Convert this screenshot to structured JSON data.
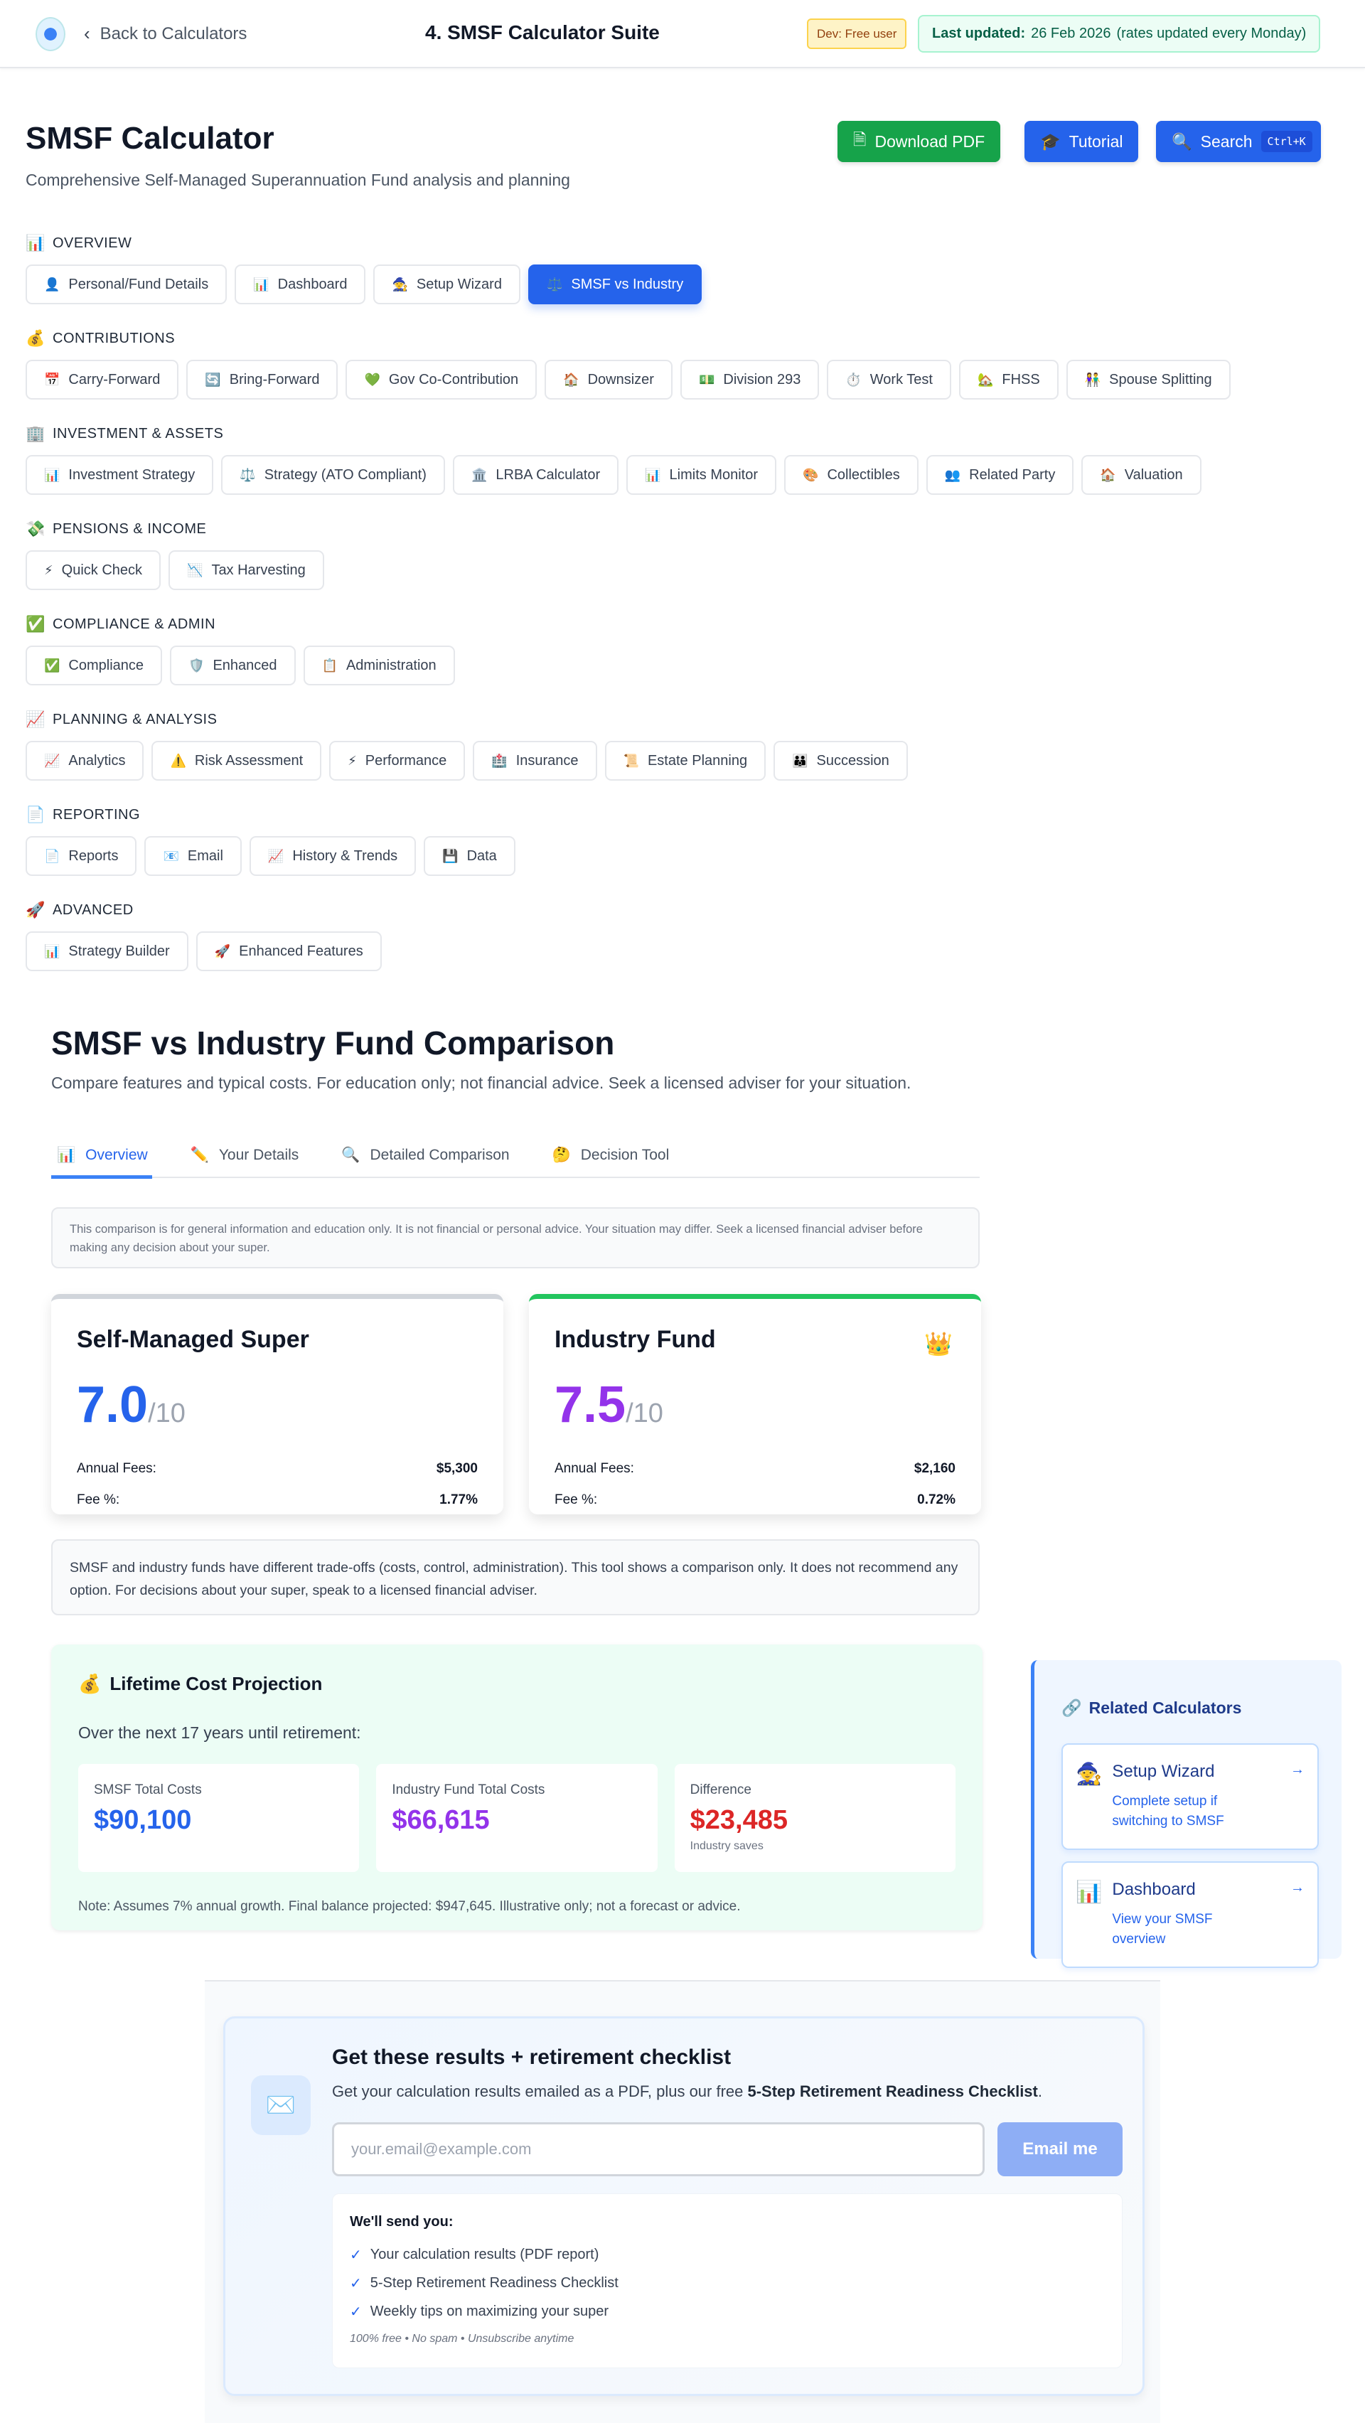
{
  "header": {
    "back_label": "Back to Calculators",
    "title": "4. SMSF Calculator Suite",
    "dev_badge": "Dev: Free user",
    "last_updated_label": "Last updated:",
    "last_updated_date": "26 Feb 2026",
    "last_updated_note": "(rates updated every Monday)"
  },
  "page": {
    "title": "SMSF Calculator",
    "subtitle": "Comprehensive Self-Managed Superannuation Fund analysis and planning"
  },
  "actions": {
    "download": "Download PDF",
    "tutorial": "Tutorial",
    "search": "Search",
    "search_shortcut": "Ctrl+K"
  },
  "colors": {
    "primary": "#2563eb",
    "success": "#16a34a",
    "purple": "#9333ea",
    "danger": "#dc2626"
  },
  "nav": [
    {
      "title": "OVERVIEW",
      "icon": "📊",
      "items": [
        {
          "icon": "👤",
          "label": "Personal/Fund Details"
        },
        {
          "icon": "📊",
          "label": "Dashboard"
        },
        {
          "icon": "🧙",
          "label": "Setup Wizard"
        },
        {
          "icon": "⚖️",
          "label": "SMSF vs Industry",
          "active": true
        }
      ]
    },
    {
      "title": "CONTRIBUTIONS",
      "icon": "💰",
      "items": [
        {
          "icon": "📅",
          "label": "Carry-Forward"
        },
        {
          "icon": "🔄",
          "label": "Bring-Forward"
        },
        {
          "icon": "💚",
          "label": "Gov Co-Contribution"
        },
        {
          "icon": "🏠",
          "label": "Downsizer"
        },
        {
          "icon": "💵",
          "label": "Division 293"
        },
        {
          "icon": "⏱️",
          "label": "Work Test"
        },
        {
          "icon": "🏡",
          "label": "FHSS"
        },
        {
          "icon": "👫",
          "label": "Spouse Splitting"
        }
      ]
    },
    {
      "title": "INVESTMENT & ASSETS",
      "icon": "🏢",
      "items": [
        {
          "icon": "📊",
          "label": "Investment Strategy"
        },
        {
          "icon": "⚖️",
          "label": "Strategy (ATO Compliant)"
        },
        {
          "icon": "🏛️",
          "label": "LRBA Calculator"
        },
        {
          "icon": "📊",
          "label": "Limits Monitor"
        },
        {
          "icon": "🎨",
          "label": "Collectibles"
        },
        {
          "icon": "👥",
          "label": "Related Party"
        },
        {
          "icon": "🏠",
          "label": "Valuation"
        }
      ]
    },
    {
      "title": "PENSIONS & INCOME",
      "icon": "💸",
      "items": [
        {
          "icon": "⚡",
          "label": "Quick Check"
        },
        {
          "icon": "📉",
          "label": "Tax Harvesting"
        }
      ]
    },
    {
      "title": "COMPLIANCE & ADMIN",
      "icon": "✅",
      "items": [
        {
          "icon": "✅",
          "label": "Compliance"
        },
        {
          "icon": "🛡️",
          "label": "Enhanced"
        },
        {
          "icon": "📋",
          "label": "Administration"
        }
      ]
    },
    {
      "title": "PLANNING & ANALYSIS",
      "icon": "📈",
      "items": [
        {
          "icon": "📈",
          "label": "Analytics"
        },
        {
          "icon": "⚠️",
          "label": "Risk Assessment"
        },
        {
          "icon": "⚡",
          "label": "Performance"
        },
        {
          "icon": "🏥",
          "label": "Insurance"
        },
        {
          "icon": "📜",
          "label": "Estate Planning"
        },
        {
          "icon": "👪",
          "label": "Succession"
        }
      ]
    },
    {
      "title": "REPORTING",
      "icon": "📄",
      "items": [
        {
          "icon": "📄",
          "label": "Reports"
        },
        {
          "icon": "📧",
          "label": "Email"
        },
        {
          "icon": "📈",
          "label": "History & Trends"
        },
        {
          "icon": "💾",
          "label": "Data"
        }
      ]
    },
    {
      "title": "ADVANCED",
      "icon": "🚀",
      "items": [
        {
          "icon": "📊",
          "label": "Strategy Builder"
        },
        {
          "icon": "🚀",
          "label": "Enhanced Features"
        }
      ]
    }
  ],
  "comparison": {
    "title": "SMSF vs Industry Fund Comparison",
    "subtitle": "Compare features and typical costs. For education only; not financial advice. Seek a licensed adviser for your situation.",
    "tabs": [
      {
        "icon": "📊",
        "label": "Overview",
        "active": true
      },
      {
        "icon": "✏️",
        "label": "Your Details"
      },
      {
        "icon": "🔍",
        "label": "Detailed Comparison"
      },
      {
        "icon": "🤔",
        "label": "Decision Tool"
      }
    ],
    "disclaimer": "This comparison is for general information and education only. It is not financial or personal advice. Your situation may differ. Seek a licensed financial adviser before making any decision about your super.",
    "smsf": {
      "name": "Self-Managed Super",
      "score": "7.0",
      "score_of": "/10",
      "fees_label": "Annual Fees:",
      "fees": "$5,300",
      "pct_label": "Fee %:",
      "pct": "1.77%",
      "accent": "#d1d5db"
    },
    "industry": {
      "name": "Industry Fund",
      "score": "7.5",
      "score_of": "/10",
      "fees_label": "Annual Fees:",
      "fees": "$2,160",
      "pct_label": "Fee %:",
      "pct": "0.72%",
      "accent": "#22c55e",
      "winner_icon": "👑"
    },
    "note": "SMSF and industry funds have different trade-offs (costs, control, administration). This tool shows a comparison only. It does not recommend any option. For decisions about your super, speak to a licensed financial adviser."
  },
  "lifetime": {
    "icon": "💰",
    "title": "Lifetime Cost Projection",
    "over": "Over the next 17 years until retirement:",
    "stats": [
      {
        "label": "SMSF Total Costs",
        "value": "$90,100",
        "color": "#2563eb"
      },
      {
        "label": "Industry Fund Total Costs",
        "value": "$66,615",
        "color": "#9333ea"
      },
      {
        "label": "Difference",
        "value": "$23,485",
        "color": "#dc2626",
        "sub": "Industry saves"
      }
    ],
    "footnote": "Note: Assumes 7% annual growth. Final balance projected: $947,645. Illustrative only; not a forecast or advice."
  },
  "related": {
    "icon": "🔗",
    "title": "Related Calculators",
    "items": [
      {
        "icon": "🧙",
        "title": "Setup Wizard",
        "desc": "Complete setup if switching to SMSF"
      },
      {
        "icon": "📊",
        "title": "Dashboard",
        "desc": "View your SMSF overview"
      }
    ]
  },
  "lead": {
    "icon": "✉️",
    "title": "Get these results + retirement checklist",
    "sub_pre": "Get your calculation results emailed as a PDF, plus our free ",
    "sub_bold": "5-Step Retirement Readiness Checklist",
    "sub_post": ".",
    "email_placeholder": "your.email@example.com",
    "button": "Email me",
    "send_title": "We'll send you:",
    "send_items": [
      "Your calculation results (PDF report)",
      "5-Step Retirement Readiness Checklist",
      "Weekly tips on maximizing your super"
    ],
    "fine": "100% free • No spam • Unsubscribe anytime"
  }
}
